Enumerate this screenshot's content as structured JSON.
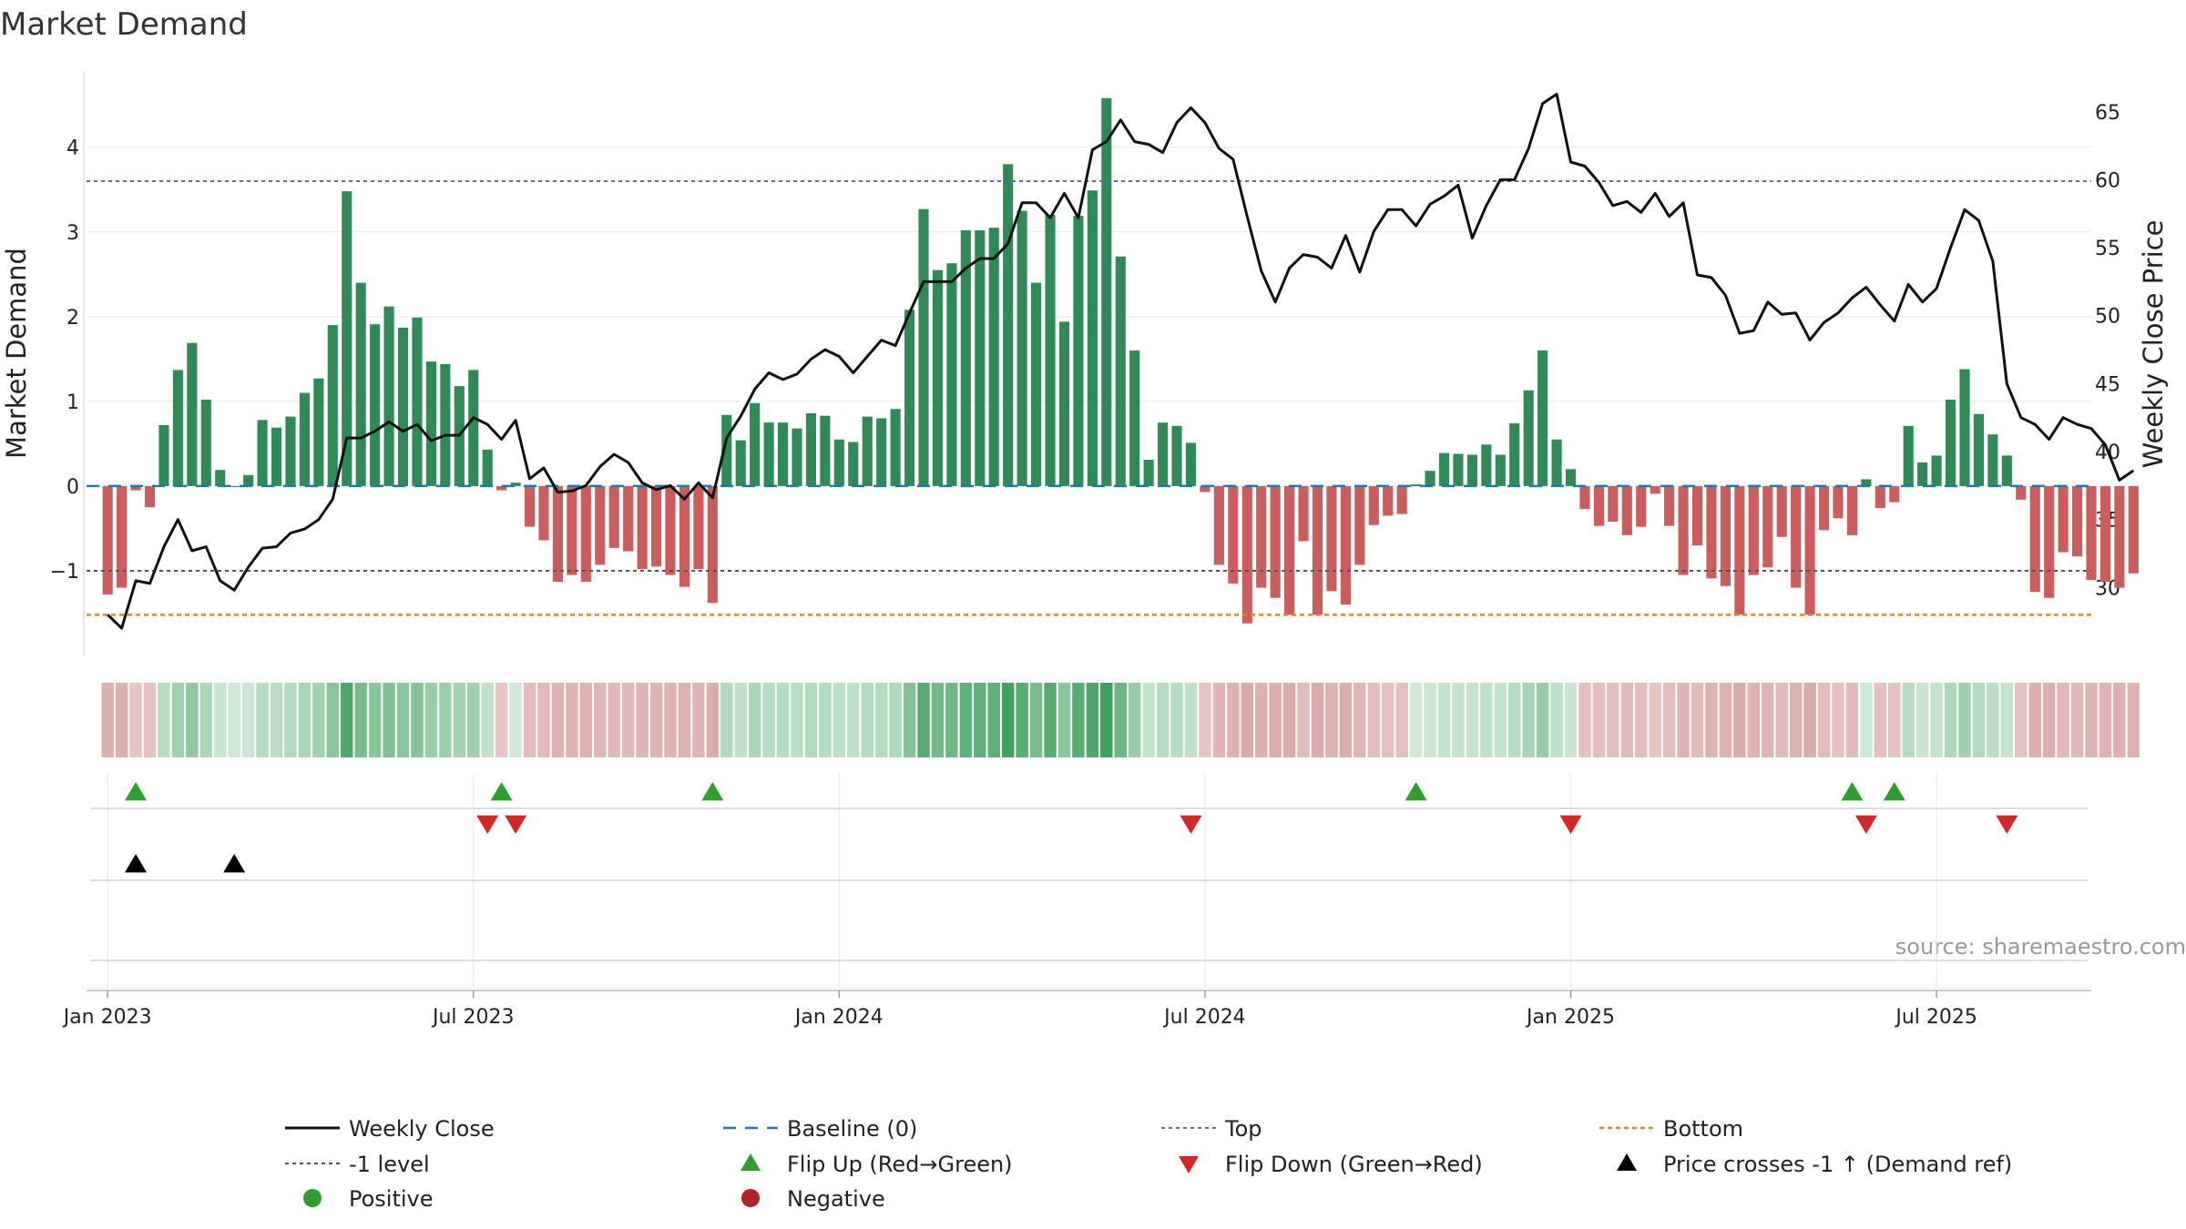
{
  "chart_data": {
    "type": "bar",
    "title": "Market Demand",
    "ylabel": "Market Demand",
    "y2label": "Weekly Close Price",
    "ylim": [
      -2.0,
      4.9
    ],
    "y2lim": [
      25.0,
      68.0
    ],
    "yticks": [
      -1,
      0,
      1,
      2,
      3,
      4
    ],
    "ytick_labels": [
      "−1",
      "0",
      "1",
      "2",
      "3",
      "4"
    ],
    "y2ticks": [
      30,
      35,
      40,
      45,
      50,
      55,
      60,
      65
    ],
    "xticks": [
      0,
      26,
      52,
      78,
      104,
      130
    ],
    "xtick_labels": [
      "Jan 2023",
      "Jul 2023",
      "Jan 2024",
      "Jul 2024",
      "Jan 2025",
      "Jul 2025"
    ],
    "x_start_week": -1.5,
    "x_end_week": 141,
    "levels": {
      "top": 3.6,
      "minus_one": -1.0,
      "bottom": -1.52,
      "baseline": 0
    },
    "demand": [
      -1.28,
      -1.2,
      -0.05,
      -0.25,
      0.72,
      1.37,
      1.69,
      1.02,
      0.19,
      0.0,
      0.13,
      0.78,
      0.69,
      0.82,
      1.1,
      1.27,
      1.9,
      3.48,
      2.4,
      1.91,
      2.12,
      1.87,
      1.99,
      1.47,
      1.44,
      1.18,
      1.37,
      0.43,
      -0.05,
      0.04,
      -0.48,
      -0.64,
      -1.13,
      -1.05,
      -1.13,
      -0.93,
      -0.73,
      -0.77,
      -0.98,
      -0.95,
      -1.05,
      -1.19,
      -0.98,
      -1.38,
      0.84,
      0.54,
      0.98,
      0.75,
      0.75,
      0.68,
      0.86,
      0.83,
      0.55,
      0.52,
      0.82,
      0.8,
      0.91,
      2.08,
      3.27,
      2.55,
      2.63,
      3.02,
      3.02,
      3.05,
      3.8,
      3.25,
      2.4,
      3.2,
      1.94,
      3.19,
      3.49,
      4.58,
      2.71,
      1.6,
      0.31,
      0.75,
      0.71,
      0.51,
      -0.07,
      -0.93,
      -1.15,
      -1.62,
      -1.2,
      -1.32,
      -1.52,
      -0.65,
      -1.52,
      -1.24,
      -1.4,
      -0.93,
      -0.46,
      -0.35,
      -0.33,
      0.02,
      0.18,
      0.39,
      0.38,
      0.37,
      0.49,
      0.37,
      0.74,
      1.13,
      1.6,
      0.55,
      0.2,
      -0.27,
      -0.47,
      -0.42,
      -0.58,
      -0.48,
      -0.09,
      -0.47,
      -1.05,
      -0.7,
      -1.09,
      -1.18,
      -1.52,
      -1.05,
      -0.96,
      -0.6,
      -1.2,
      -1.52,
      -0.52,
      -0.38,
      -0.58,
      0.08,
      -0.26,
      -0.19,
      0.71,
      0.28,
      0.36,
      1.02,
      1.38,
      0.85,
      0.61,
      0.36,
      -0.16,
      -1.25,
      -1.32,
      -0.78,
      -0.83,
      -1.11,
      -1.13,
      -1.2,
      -1.03
    ],
    "price": [
      28.0,
      27.0,
      30.5,
      30.3,
      33.0,
      35.0,
      32.7,
      33.0,
      30.5,
      29.8,
      31.5,
      32.9,
      33.0,
      34.0,
      34.3,
      35.0,
      36.5,
      41.0,
      41.0,
      41.5,
      42.2,
      41.5,
      42.0,
      40.8,
      41.2,
      41.2,
      42.5,
      42.0,
      40.9,
      42.3,
      38.0,
      38.8,
      37.0,
      37.1,
      37.5,
      38.9,
      39.8,
      39.2,
      37.7,
      37.2,
      37.5,
      36.5,
      37.7,
      36.6,
      41.0,
      42.6,
      44.6,
      45.8,
      45.3,
      45.7,
      46.8,
      47.5,
      47.0,
      45.8,
      47.0,
      48.2,
      47.8,
      50.2,
      52.5,
      52.5,
      52.5,
      53.5,
      54.2,
      54.2,
      55.3,
      58.3,
      58.3,
      57.2,
      59.0,
      57.2,
      62.2,
      62.8,
      64.4,
      62.8,
      62.6,
      62.0,
      64.2,
      65.3,
      64.2,
      62.3,
      61.5,
      57.3,
      53.3,
      51.0,
      53.5,
      54.5,
      54.3,
      53.5,
      55.9,
      53.2,
      56.2,
      57.8,
      57.8,
      56.6,
      58.2,
      58.8,
      59.6,
      55.7,
      58.1,
      60.0,
      60.0,
      62.3,
      65.6,
      66.3,
      61.3,
      61.0,
      59.8,
      58.1,
      58.4,
      57.6,
      59.0,
      57.3,
      58.3,
      53.0,
      52.8,
      51.5,
      48.7,
      48.9,
      51.0,
      50.1,
      50.2,
      48.2,
      49.5,
      50.2,
      51.3,
      52.1,
      50.8,
      49.6,
      52.3,
      51.0,
      52.0,
      55.0,
      57.8,
      57.0,
      54.0,
      45.0,
      42.5,
      42.0,
      40.9,
      42.5,
      42.0,
      41.7,
      40.5,
      37.9,
      38.6
    ],
    "flip_up_weeks": [
      2,
      28,
      43,
      93,
      124,
      127
    ],
    "flip_down_weeks": [
      27,
      29,
      77,
      104,
      125,
      135
    ],
    "price_cross_weeks": [
      2,
      9
    ],
    "source": "source: sharemaestro.com",
    "legend": [
      {
        "key": "close",
        "label": "Weekly Close"
      },
      {
        "key": "baseline",
        "label": "Baseline (0)"
      },
      {
        "key": "top",
        "label": "Top"
      },
      {
        "key": "bottom",
        "label": "Bottom"
      },
      {
        "key": "minus1",
        "label": "-1 level"
      },
      {
        "key": "flipup",
        "label": "Flip Up (Red→Green)"
      },
      {
        "key": "flipdown",
        "label": "Flip Down (Green→Red)"
      },
      {
        "key": "cross",
        "label": "Price crosses -1 ↑ (Demand ref)"
      },
      {
        "key": "pos",
        "label": "Positive"
      },
      {
        "key": "neg",
        "label": "Negative"
      }
    ],
    "colors": {
      "pos_bar": "#2e8b57",
      "neg_bar": "#cd5c5c",
      "close": "#111111",
      "baseline": "#1f77b4",
      "top": "#6a5acd",
      "bottom": "#e08a1e",
      "minus1": "#555555",
      "flip_up": "#2ca02c",
      "flip_down": "#d62728",
      "cross": "#000000",
      "positive": "#2ca02c",
      "negative": "#b22222"
    }
  }
}
